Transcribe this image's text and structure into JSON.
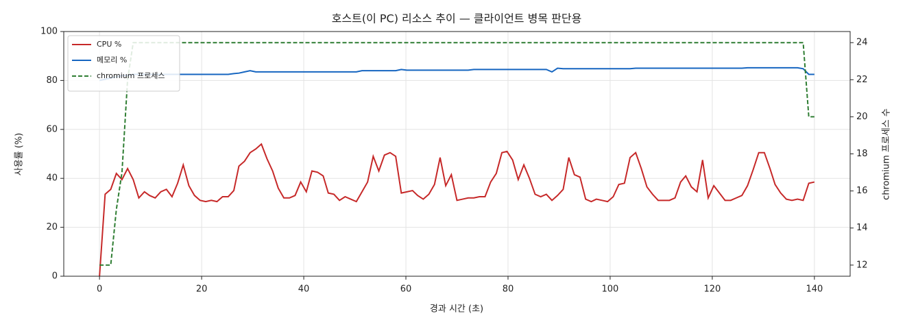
{
  "chart_data": {
    "type": "line",
    "title": "호스트(이 PC) 리소스 추이 — 클라이언트 병목 판단용",
    "x_label": "경과 시간 (초)",
    "y_label": "사용률 (%)",
    "y2_label": "chromium 프로세스 수",
    "xlim": [
      -7,
      147
    ],
    "xticks": [
      0,
      20,
      40,
      60,
      80,
      100,
      120,
      140
    ],
    "ylim": [
      0,
      100
    ],
    "yticks": [
      0,
      20,
      40,
      60,
      80,
      100
    ],
    "y2lim": [
      11.4,
      24.6
    ],
    "y2ticks": [
      12,
      14,
      16,
      18,
      20,
      22,
      24
    ],
    "grid": true,
    "legend": "upper left",
    "x": [
      0,
      1.1,
      2.2,
      3.3,
      4.4,
      5.5,
      6.6,
      7.7,
      8.8,
      9.8,
      10.9,
      12.0,
      13.1,
      14.2,
      15.3,
      16.4,
      17.5,
      18.6,
      19.7,
      20.8,
      21.9,
      23.0,
      24.1,
      25.2,
      26.3,
      27.3,
      28.4,
      29.5,
      30.6,
      31.7,
      32.8,
      33.9,
      35.0,
      36.1,
      37.2,
      38.3,
      39.4,
      40.5,
      41.6,
      42.7,
      43.8,
      44.8,
      45.9,
      47.0,
      48.1,
      49.2,
      50.3,
      51.4,
      52.5,
      53.6,
      54.7,
      55.8,
      56.9,
      58.0,
      59.1,
      60.2,
      61.3,
      62.3,
      63.4,
      64.5,
      65.6,
      66.7,
      67.8,
      68.9,
      70.0,
      71.1,
      72.2,
      73.3,
      74.4,
      75.5,
      76.6,
      77.7,
      78.8,
      79.8,
      80.9,
      82.0,
      83.1,
      84.2,
      85.3,
      86.4,
      87.5,
      88.6,
      89.7,
      90.8,
      91.9,
      93.0,
      94.1,
      95.2,
      96.3,
      97.3,
      98.4,
      99.5,
      100.6,
      101.7,
      102.8,
      103.9,
      105.0,
      106.1,
      107.2,
      108.3,
      109.4,
      110.5,
      111.6,
      112.7,
      113.8,
      114.8,
      115.9,
      117.0,
      118.1,
      119.2,
      120.3,
      121.4,
      122.5,
      123.6,
      124.7,
      125.8,
      126.9,
      128.0,
      129.1,
      130.2,
      131.3,
      132.3,
      133.4,
      134.5,
      135.6,
      136.7,
      137.8,
      138.9,
      140.0
    ],
    "series": [
      {
        "name": "CPU %",
        "color": "#c62828",
        "line_style": "solid",
        "axis": "y",
        "values": [
          0,
          33.5,
          35.5,
          42,
          39.5,
          44,
          39.5,
          32,
          34.5,
          33,
          32,
          34.5,
          35.5,
          32.5,
          38,
          45.5,
          37,
          33,
          31,
          30.5,
          31,
          30.5,
          32.5,
          32.5,
          35,
          45,
          47,
          50.5,
          52,
          54,
          48,
          43,
          36,
          32,
          32,
          33,
          38.5,
          34.5,
          43,
          42.5,
          41,
          34,
          33.5,
          31,
          32.5,
          31.5,
          30.5,
          34.5,
          38.5,
          49,
          43,
          49.5,
          50.5,
          49,
          34,
          34.5,
          35,
          33,
          31.5,
          33.5,
          37.5,
          48.5,
          37,
          41.5,
          31,
          31.5,
          32,
          32,
          32.5,
          32.5,
          38.5,
          42,
          50.5,
          51,
          47.5,
          39.5,
          45.5,
          40,
          33.5,
          32.5,
          33.5,
          31,
          33,
          35.5,
          48.5,
          41.5,
          40.5,
          31.5,
          30.5,
          31.5,
          31,
          30.5,
          32.5,
          37.5,
          38,
          48.5,
          50.5,
          44,
          36.5,
          33.5,
          31,
          31,
          31,
          32,
          38.5,
          41,
          36.5,
          34.5,
          47.5,
          32,
          37,
          34,
          31,
          31,
          32,
          33,
          37,
          43.5,
          50.5,
          50.5,
          44,
          37.5,
          34,
          31.5,
          31,
          31.5,
          31,
          38,
          38.5
        ]
      },
      {
        "name": "메모리 %",
        "color": "#1565c0",
        "line_style": "solid",
        "axis": "y",
        "values": [
          80,
          80.5,
          81,
          81.5,
          82,
          82,
          82.5,
          82.5,
          82.5,
          82.5,
          82.5,
          82.5,
          82.5,
          82.5,
          82.5,
          82.5,
          82.5,
          82.5,
          82.5,
          82.5,
          82.5,
          82.5,
          82.5,
          82.5,
          82.8,
          83,
          83.5,
          84,
          83.5,
          83.5,
          83.5,
          83.5,
          83.5,
          83.5,
          83.5,
          83.5,
          83.5,
          83.5,
          83.5,
          83.5,
          83.5,
          83.5,
          83.5,
          83.5,
          83.5,
          83.5,
          83.5,
          84,
          84,
          84,
          84,
          84,
          84,
          84,
          84.5,
          84.2,
          84.2,
          84.2,
          84.2,
          84.2,
          84.2,
          84.2,
          84.2,
          84.2,
          84.2,
          84.2,
          84.2,
          84.5,
          84.5,
          84.5,
          84.5,
          84.5,
          84.5,
          84.5,
          84.5,
          84.5,
          84.5,
          84.5,
          84.5,
          84.5,
          84.5,
          83.5,
          85,
          84.8,
          84.8,
          84.8,
          84.8,
          84.8,
          84.8,
          84.8,
          84.8,
          84.8,
          84.8,
          84.8,
          84.8,
          84.8,
          85,
          85,
          85,
          85,
          85,
          85,
          85,
          85,
          85,
          85,
          85,
          85,
          85,
          85,
          85,
          85,
          85,
          85,
          85,
          85,
          85.2,
          85.2,
          85.2,
          85.2,
          85.2,
          85.2,
          85.2,
          85.2,
          85.2,
          85.2,
          84.8,
          82.5,
          82.5
        ]
      },
      {
        "name": "chromium 프로세스",
        "color": "#2e7d32",
        "line_style": "dashed",
        "axis": "y2",
        "values": [
          12,
          12,
          12,
          15,
          17,
          22,
          24,
          24,
          24,
          24,
          24,
          24,
          24,
          24,
          24,
          24,
          24,
          24,
          24,
          24,
          24,
          24,
          24,
          24,
          24,
          24,
          24,
          24,
          24,
          24,
          24,
          24,
          24,
          24,
          24,
          24,
          24,
          24,
          24,
          24,
          24,
          24,
          24,
          24,
          24,
          24,
          24,
          24,
          24,
          24,
          24,
          24,
          24,
          24,
          24,
          24,
          24,
          24,
          24,
          24,
          24,
          24,
          24,
          24,
          24,
          24,
          24,
          24,
          24,
          24,
          24,
          24,
          24,
          24,
          24,
          24,
          24,
          24,
          24,
          24,
          24,
          24,
          24,
          24,
          24,
          24,
          24,
          24,
          24,
          24,
          24,
          24,
          24,
          24,
          24,
          24,
          24,
          24,
          24,
          24,
          24,
          24,
          24,
          24,
          24,
          24,
          24,
          24,
          24,
          24,
          24,
          24,
          24,
          24,
          24,
          24,
          24,
          24,
          24,
          24,
          24,
          24,
          24,
          24,
          24,
          24,
          24,
          20,
          20
        ]
      }
    ]
  }
}
